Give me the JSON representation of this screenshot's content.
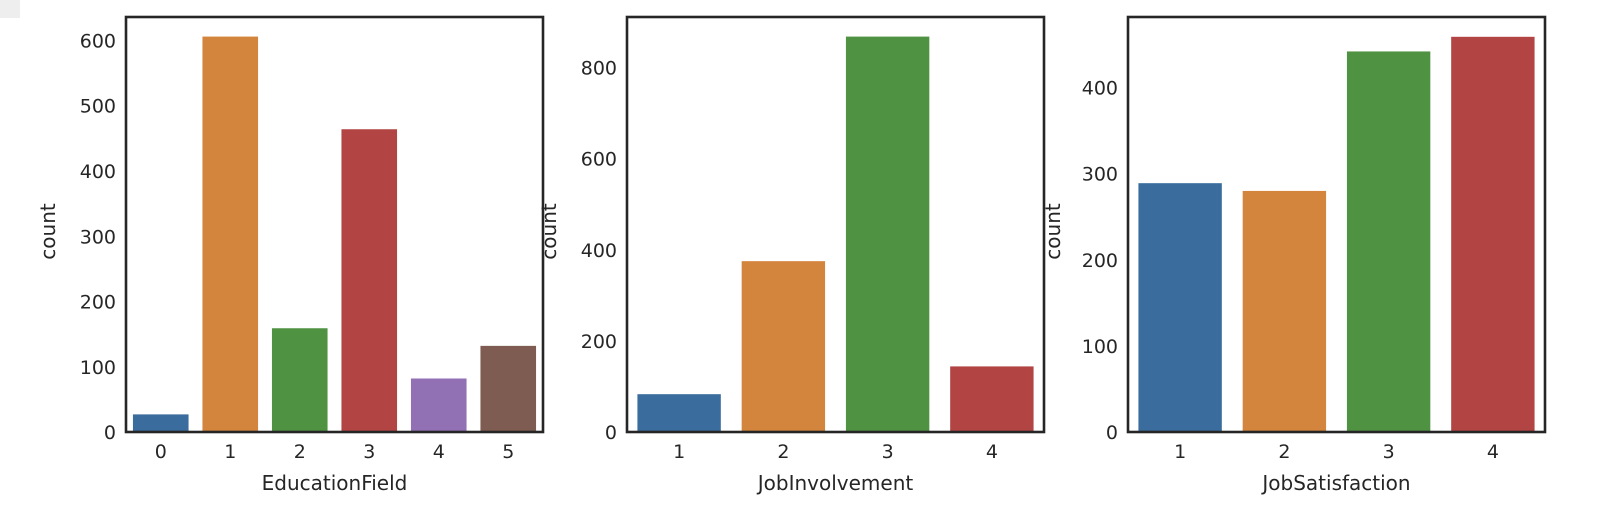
{
  "figure": {
    "background": "#ffffff",
    "frame_color": "#262626",
    "palette": [
      "#3a6d9d",
      "#d3843d",
      "#4f9342",
      "#b24544",
      "#9170b4",
      "#7f5c51"
    ]
  },
  "chart_data": [
    {
      "type": "bar",
      "title": "",
      "xlabel": "EducationField",
      "ylabel": "count",
      "categories": [
        "0",
        "1",
        "2",
        "3",
        "4",
        "5"
      ],
      "values": [
        27,
        606,
        159,
        464,
        82,
        132
      ],
      "ylim": [
        0,
        636
      ],
      "yticks": [
        0,
        100,
        200,
        300,
        400,
        500,
        600
      ],
      "grid": false,
      "legend": "none"
    },
    {
      "type": "bar",
      "title": "",
      "xlabel": "JobInvolvement",
      "ylabel": "count",
      "categories": [
        "1",
        "2",
        "3",
        "4"
      ],
      "values": [
        83,
        375,
        868,
        144
      ],
      "ylim": [
        0,
        911
      ],
      "yticks": [
        0,
        200,
        400,
        600,
        800
      ],
      "grid": false,
      "legend": "none"
    },
    {
      "type": "bar",
      "title": "",
      "xlabel": "JobSatisfaction",
      "ylabel": "count",
      "categories": [
        "1",
        "2",
        "3",
        "4"
      ],
      "values": [
        289,
        280,
        442,
        459
      ],
      "ylim": [
        0,
        482
      ],
      "yticks": [
        0,
        100,
        200,
        300,
        400
      ],
      "grid": false,
      "legend": "none"
    }
  ]
}
